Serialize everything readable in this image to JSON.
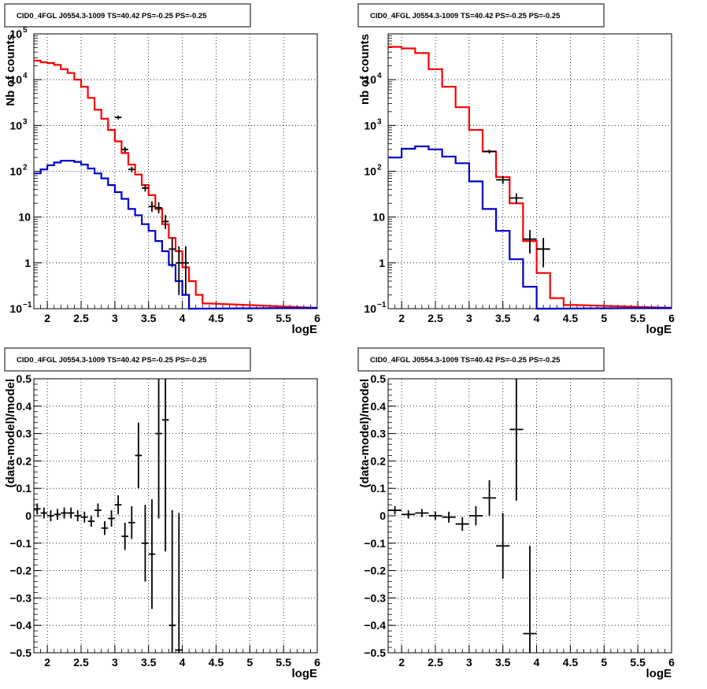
{
  "window": {
    "title": ""
  },
  "colors": {
    "model_total": "#ff0000",
    "model_source": "#0000cc",
    "data": "#000000",
    "grid": "#000000"
  },
  "chart_data": [
    {
      "id": "p1",
      "type": "histogram-log",
      "title": "CID0_4FGL J0554.3-1009 TS=40.42 PS=-0.25 PS=-0.25",
      "xlabel": "logE",
      "ylabel": "Nb of counts",
      "xlim": [
        1.8,
        6
      ],
      "ylim": [
        0.1,
        100000
      ],
      "log_y": true,
      "grid": true,
      "xticks": [
        "2",
        "2.5",
        "3",
        "3.5",
        "4",
        "4.5",
        "5",
        "5.5",
        "6"
      ],
      "yticks": [
        {
          "base": "10",
          "exp": "−1"
        },
        {
          "base": "1",
          "exp": ""
        },
        {
          "base": "10",
          "exp": ""
        },
        {
          "base": "10",
          "exp": "2"
        },
        {
          "base": "10",
          "exp": "3"
        },
        {
          "base": "10",
          "exp": "4"
        },
        {
          "base": "10",
          "exp": "5"
        }
      ],
      "bin_width": 0.1,
      "series": [
        {
          "role": "total-model",
          "color": "#ff0000",
          "x": [
            1.8,
            1.9,
            2.0,
            2.1,
            2.2,
            2.3,
            2.4,
            2.5,
            2.6,
            2.7,
            2.8,
            2.9,
            3.0,
            3.1,
            3.2,
            3.3,
            3.4,
            3.5,
            3.6,
            3.7,
            3.8,
            3.9,
            4.0,
            4.1,
            4.2,
            4.3
          ],
          "values": [
            26000,
            24000,
            23000,
            21000,
            17000,
            14000,
            10000,
            7000,
            4000,
            2200,
            1400,
            800,
            450,
            250,
            140,
            85,
            50,
            30,
            15,
            7,
            3.5,
            1.8,
            0.8,
            0.4,
            0.2,
            0.13
          ]
        },
        {
          "role": "source-model",
          "color": "#0000cc",
          "x": [
            1.8,
            1.9,
            2.0,
            2.1,
            2.2,
            2.3,
            2.4,
            2.5,
            2.6,
            2.7,
            2.8,
            2.9,
            3.0,
            3.1,
            3.2,
            3.3,
            3.4,
            3.5,
            3.6,
            3.7,
            3.8,
            3.9,
            4.0,
            4.1
          ],
          "values": [
            90,
            110,
            135,
            155,
            170,
            170,
            160,
            140,
            115,
            90,
            70,
            50,
            35,
            25,
            15,
            11,
            7,
            5,
            3,
            1.8,
            0.9,
            0.4,
            0.2,
            0.1
          ]
        },
        {
          "role": "data",
          "points": [
            {
              "x": 3.05,
              "y": 1500,
              "ylo": 1350,
              "yhi": 1650
            },
            {
              "x": 3.15,
              "y": 300,
              "ylo": 260,
              "yhi": 340
            },
            {
              "x": 3.25,
              "y": 110,
              "ylo": 95,
              "yhi": 125
            },
            {
              "x": 3.45,
              "y": 43,
              "ylo": 36,
              "yhi": 51
            },
            {
              "x": 3.55,
              "y": 17,
              "ylo": 13,
              "yhi": 22
            },
            {
              "x": 3.65,
              "y": 16,
              "ylo": 12,
              "yhi": 21
            },
            {
              "x": 3.75,
              "y": 8,
              "ylo": 5.5,
              "yhi": 11
            },
            {
              "x": 3.85,
              "y": 2,
              "ylo": 0.8,
              "yhi": 3.5
            },
            {
              "x": 3.95,
              "y": 1,
              "ylo": 0.2,
              "yhi": 2.3
            },
            {
              "x": 4.05,
              "y": 1,
              "ylo": 0.2,
              "yhi": 2.3
            }
          ]
        }
      ]
    },
    {
      "id": "p2",
      "type": "histogram-log",
      "title": "CID0_4FGL J0554.3-1009 TS=40.42 PS=-0.25 PS=-0.25",
      "xlabel": "logE",
      "ylabel": "nb of counts",
      "xlim": [
        1.8,
        6
      ],
      "ylim": [
        0.1,
        100000
      ],
      "log_y": true,
      "grid": true,
      "xticks": [
        "2",
        "2.5",
        "3",
        "3.5",
        "4",
        "4.5",
        "5",
        "5.5",
        "6"
      ],
      "yticks": [
        {
          "base": "10",
          "exp": "−1"
        },
        {
          "base": "1",
          "exp": ""
        },
        {
          "base": "10",
          "exp": ""
        },
        {
          "base": "10",
          "exp": "2"
        },
        {
          "base": "10",
          "exp": "3"
        },
        {
          "base": "10",
          "exp": "4"
        }
      ],
      "bin_width": 0.2,
      "series": [
        {
          "role": "total-model",
          "color": "#ff0000",
          "x": [
            1.8,
            2.0,
            2.2,
            2.4,
            2.6,
            2.8,
            3.0,
            3.2,
            3.4,
            3.6,
            3.8,
            4.0,
            4.2,
            4.4
          ],
          "values": [
            52000,
            48000,
            38000,
            17000,
            7000,
            2500,
            800,
            270,
            75,
            20,
            3,
            0.6,
            0.17,
            0.12
          ]
        },
        {
          "role": "source-model",
          "color": "#0000cc",
          "x": [
            1.8,
            2.0,
            2.2,
            2.4,
            2.6,
            2.8,
            3.0,
            3.2,
            3.4,
            3.6,
            3.8,
            4.0
          ],
          "values": [
            200,
            310,
            350,
            300,
            210,
            150,
            60,
            15,
            5,
            1.2,
            0.3,
            0.08
          ]
        },
        {
          "role": "data",
          "points": [
            {
              "x": 3.3,
              "y": 270,
              "ylo": 245,
              "yhi": 295
            },
            {
              "x": 3.5,
              "y": 65,
              "ylo": 53,
              "yhi": 78
            },
            {
              "x": 3.7,
              "y": 26,
              "ylo": 20,
              "yhi": 33
            },
            {
              "x": 3.9,
              "y": 3.3,
              "ylo": 1.6,
              "yhi": 5.2
            },
            {
              "x": 4.1,
              "y": 2,
              "ylo": 0.8,
              "yhi": 3.5
            }
          ]
        }
      ]
    },
    {
      "id": "p3",
      "type": "scatter-errorbars",
      "title": "CID0_4FGL J0554.3-1009 TS=40.42 PS=-0.25 PS=-0.25",
      "xlabel": "logE",
      "ylabel": "(data-model)/model",
      "xlim": [
        1.8,
        6
      ],
      "ylim": [
        -0.5,
        0.5
      ],
      "grid": true,
      "xticks": [
        "2",
        "2.5",
        "3",
        "3.5",
        "4",
        "4.5",
        "5",
        "5.5",
        "6"
      ],
      "yticks": [
        "−0.5",
        "−0.4",
        "−0.3",
        "−0.2",
        "−0.1",
        "0",
        "0.1",
        "0.2",
        "0.3",
        "0.4",
        "0.5"
      ],
      "xerr": 0.05,
      "points": [
        {
          "x": 1.85,
          "y": 0.025,
          "e": 0.02
        },
        {
          "x": 1.95,
          "y": 0.01,
          "e": 0.02
        },
        {
          "x": 2.05,
          "y": 0.0,
          "e": 0.02
        },
        {
          "x": 2.15,
          "y": 0.005,
          "e": 0.02
        },
        {
          "x": 2.25,
          "y": 0.01,
          "e": 0.02
        },
        {
          "x": 2.35,
          "y": 0.01,
          "e": 0.02
        },
        {
          "x": 2.45,
          "y": 0.0,
          "e": 0.02
        },
        {
          "x": 2.55,
          "y": -0.005,
          "e": 0.02
        },
        {
          "x": 2.65,
          "y": -0.02,
          "e": 0.02
        },
        {
          "x": 2.75,
          "y": 0.02,
          "e": 0.025
        },
        {
          "x": 2.85,
          "y": -0.045,
          "e": 0.025
        },
        {
          "x": 2.95,
          "y": -0.01,
          "e": 0.03
        },
        {
          "x": 3.05,
          "y": 0.04,
          "e": 0.035
        },
        {
          "x": 3.15,
          "y": -0.075,
          "e": 0.05
        },
        {
          "x": 3.25,
          "y": -0.025,
          "e": 0.06
        },
        {
          "x": 3.35,
          "y": 0.22,
          "e": 0.12
        },
        {
          "x": 3.45,
          "y": -0.1,
          "e": 0.14
        },
        {
          "x": 3.55,
          "y": -0.14,
          "e": 0.2
        },
        {
          "x": 3.65,
          "y": 0.3,
          "e": 0.31
        },
        {
          "x": 3.75,
          "y": 0.35,
          "e": 0.48
        },
        {
          "x": 3.85,
          "y": -0.4,
          "e": 0.42
        },
        {
          "x": 3.95,
          "y": -0.49,
          "e": 0.5
        }
      ]
    },
    {
      "id": "p4",
      "type": "scatter-errorbars",
      "title": "CID0_4FGL J0554.3-1009 TS=40.42 PS=-0.25 PS=-0.25",
      "xlabel": "logE",
      "ylabel": "(data-model)/model",
      "xlim": [
        1.8,
        6
      ],
      "ylim": [
        -0.5,
        0.5
      ],
      "grid": true,
      "xticks": [
        "2",
        "2.5",
        "3",
        "3.5",
        "4",
        "4.5",
        "5",
        "5.5",
        "6"
      ],
      "yticks": [
        "−0.5",
        "−0.4",
        "−0.3",
        "−0.2",
        "−0.1",
        "0",
        "0.1",
        "0.2",
        "0.3",
        "0.4",
        "0.5"
      ],
      "xerr": 0.1,
      "points": [
        {
          "x": 1.9,
          "y": 0.02,
          "e": 0.015
        },
        {
          "x": 2.1,
          "y": 0.005,
          "e": 0.015
        },
        {
          "x": 2.3,
          "y": 0.01,
          "e": 0.015
        },
        {
          "x": 2.5,
          "y": 0.0,
          "e": 0.015
        },
        {
          "x": 2.7,
          "y": -0.005,
          "e": 0.02
        },
        {
          "x": 2.9,
          "y": -0.03,
          "e": 0.025
        },
        {
          "x": 3.1,
          "y": 0.0,
          "e": 0.035
        },
        {
          "x": 3.3,
          "y": 0.065,
          "e": 0.065
        },
        {
          "x": 3.5,
          "y": -0.11,
          "e": 0.12
        },
        {
          "x": 3.7,
          "y": 0.315,
          "e": 0.26
        },
        {
          "x": 3.9,
          "y": -0.43,
          "e": 0.32
        }
      ]
    }
  ]
}
